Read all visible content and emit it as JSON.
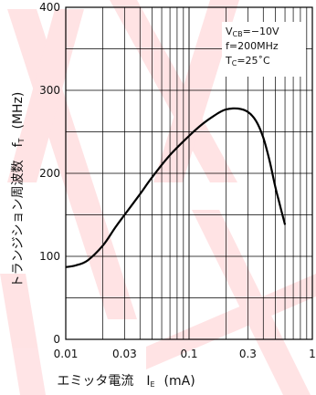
{
  "chart_data": {
    "type": "line",
    "x_scale": "log",
    "y_scale": "linear",
    "xlim": [
      0.01,
      1
    ],
    "ylim": [
      0,
      400
    ],
    "x_tick_labels": [
      "0.01",
      "0.03",
      "0.1",
      "0.3",
      "1"
    ],
    "y_tick_labels": [
      "0",
      "100",
      "200",
      "300",
      "400"
    ],
    "x_ticks": [
      0.01,
      0.03,
      0.1,
      0.3,
      1
    ],
    "y_ticks": [
      0,
      100,
      200,
      300,
      400
    ],
    "grid": true,
    "xlabel": {
      "main": "エミッタ電流　I",
      "sub": "E",
      "unit": "(mA)"
    },
    "ylabel": {
      "main": "トランジション周波数　f",
      "sub": "T",
      "unit": "(MHz)"
    },
    "conditions": [
      {
        "main": "V",
        "sub": "CB",
        "rest": "=−10V"
      },
      {
        "main": "f=200MHz",
        "sub": "",
        "rest": ""
      },
      {
        "main": "T",
        "sub": "C",
        "rest": "=25˚C"
      }
    ],
    "series": [
      {
        "x": [
          0.01,
          0.012,
          0.015,
          0.02,
          0.025,
          0.03,
          0.04,
          0.05,
          0.07,
          0.1,
          0.13,
          0.17,
          0.2,
          0.25,
          0.3,
          0.35,
          0.4,
          0.45,
          0.5,
          0.55,
          0.6
        ],
        "y": [
          87,
          89,
          95,
          113,
          134,
          150,
          175,
          195,
          222,
          245,
          260,
          272,
          277,
          278,
          274,
          263,
          243,
          215,
          184,
          160,
          138
        ]
      }
    ],
    "colors": {
      "line": "#000000",
      "grid": "#000000",
      "watermark": "#ff2d3a"
    }
  }
}
